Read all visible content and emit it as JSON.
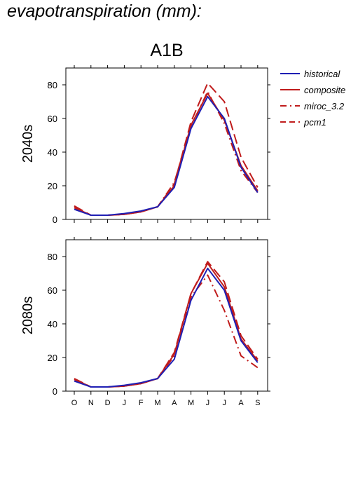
{
  "page_title": "evapotranspiration (mm):",
  "scenario_title": "A1B",
  "colors": {
    "historical": "#1f1fb4",
    "composite": "#c01c1c",
    "miroc": "#c01c1c",
    "pcm1": "#c01c1c"
  },
  "legend": [
    {
      "key": "historical",
      "label": "historical",
      "color": "#1f1fb4",
      "dash": "solid"
    },
    {
      "key": "composite",
      "label": "composite",
      "color": "#c01c1c",
      "dash": "solid"
    },
    {
      "key": "miroc",
      "label": "miroc_3.2",
      "color": "#c01c1c",
      "dash": "dashdot"
    },
    {
      "key": "pcm1",
      "label": "pcm1",
      "color": "#c01c1c",
      "dash": "dashed"
    }
  ],
  "chart_data": [
    {
      "type": "line",
      "row_label": "2040s",
      "categories": [
        "O",
        "N",
        "D",
        "J",
        "F",
        "M",
        "A",
        "M",
        "J",
        "J",
        "A",
        "S"
      ],
      "ylim": [
        0,
        90
      ],
      "yticks": [
        0,
        20,
        40,
        60,
        80
      ],
      "series": [
        {
          "name": "historical",
          "values": [
            6,
            2.5,
            2.5,
            3.5,
            5,
            7.5,
            19,
            54,
            73,
            60,
            31,
            16
          ]
        },
        {
          "name": "composite",
          "values": [
            7,
            2.5,
            2.5,
            3,
            4.5,
            7.5,
            20,
            56,
            75,
            59,
            32,
            17
          ]
        },
        {
          "name": "miroc_3.2",
          "values": [
            7,
            2.5,
            2.5,
            3,
            4.5,
            7.5,
            22,
            55,
            76,
            57,
            29,
            16
          ]
        },
        {
          "name": "pcm1",
          "values": [
            8,
            2.5,
            2.5,
            3,
            4.5,
            7.5,
            21,
            58,
            81,
            70,
            37,
            19
          ]
        }
      ]
    },
    {
      "type": "line",
      "row_label": "2080s",
      "categories": [
        "O",
        "N",
        "D",
        "J",
        "F",
        "M",
        "A",
        "M",
        "J",
        "J",
        "A",
        "S"
      ],
      "ylim": [
        0,
        90
      ],
      "yticks": [
        0,
        20,
        40,
        60,
        80
      ],
      "series": [
        {
          "name": "historical",
          "values": [
            6,
            2.5,
            2.5,
            3.5,
            5,
            7.5,
            19,
            54,
            73,
            60,
            30,
            17
          ]
        },
        {
          "name": "composite",
          "values": [
            7,
            2.5,
            2.5,
            3,
            4.5,
            7.5,
            22,
            58,
            76,
            62,
            31,
            18
          ]
        },
        {
          "name": "miroc_3.2",
          "values": [
            7,
            2.5,
            2.5,
            3,
            4.5,
            7.5,
            21,
            56,
            69,
            48,
            21,
            14
          ]
        },
        {
          "name": "pcm1",
          "values": [
            7.5,
            2.5,
            2.5,
            3,
            4.5,
            7.5,
            23,
            58,
            77,
            65,
            33,
            19
          ]
        }
      ]
    }
  ]
}
